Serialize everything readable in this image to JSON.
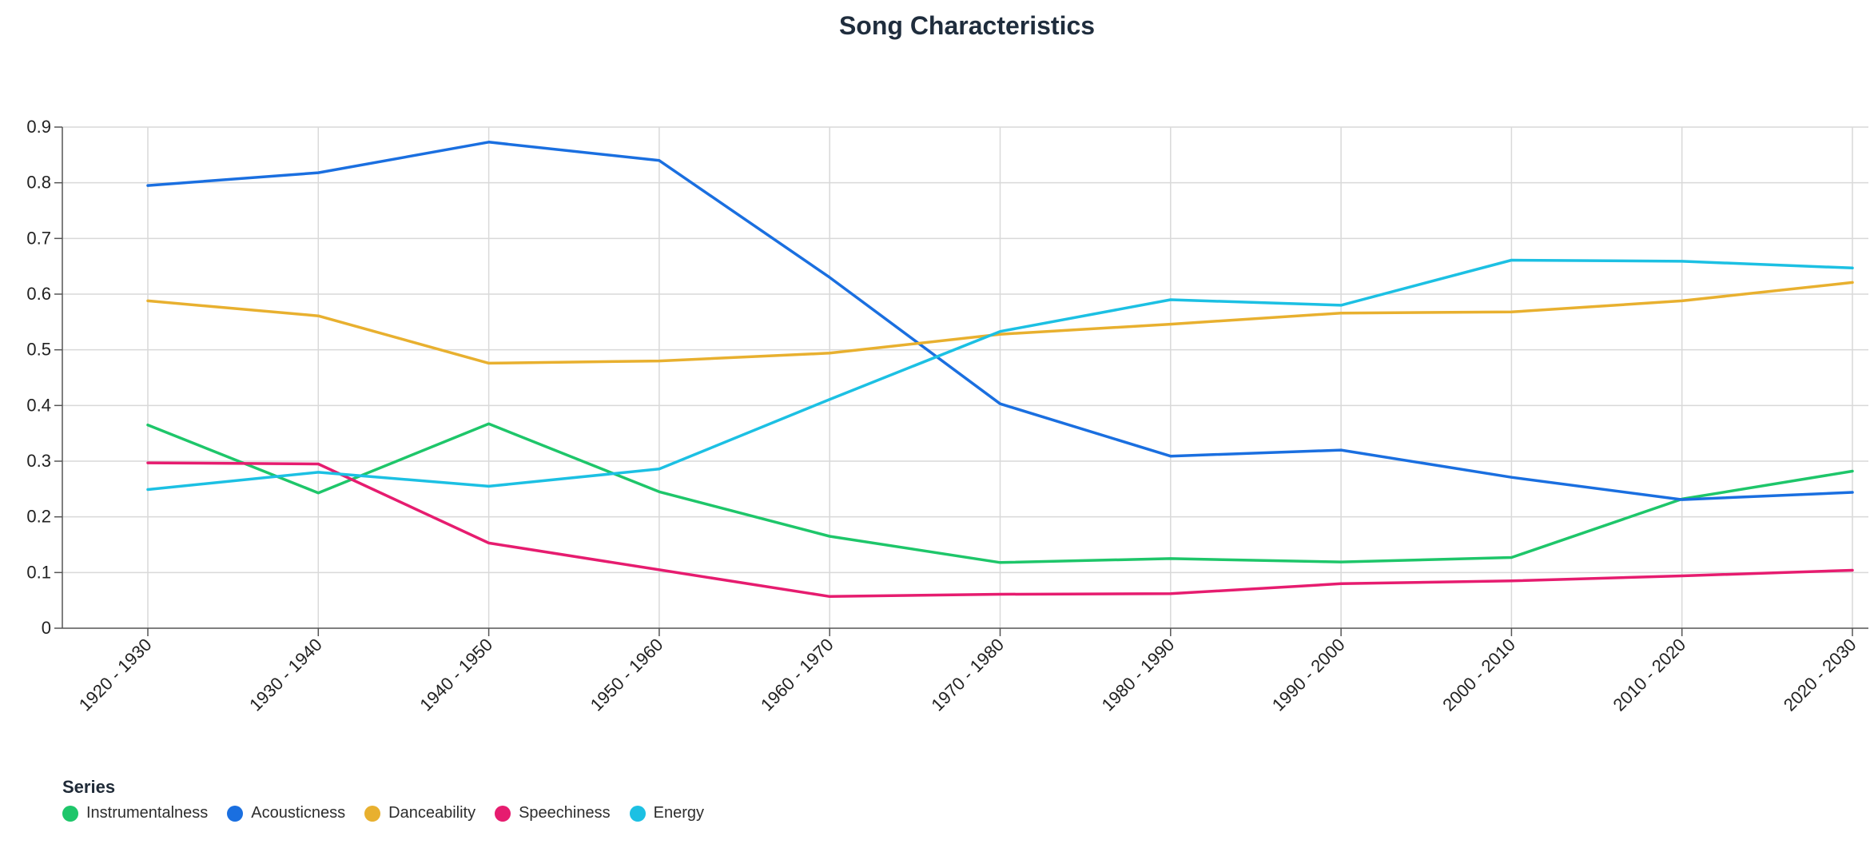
{
  "chart_data": {
    "type": "line",
    "title": "Song Characteristics",
    "xlabel": "",
    "ylabel": "",
    "categories": [
      "1920 - 1930",
      "1930 - 1940",
      "1940 - 1950",
      "1950 - 1960",
      "1960 - 1970",
      "1970 - 1980",
      "1980 - 1990",
      "1990 - 2000",
      "2000 - 2010",
      "2010 - 2020",
      "2020 - 2030"
    ],
    "ylim": [
      0,
      0.9
    ],
    "yticks": [
      "0",
      "0.1",
      "0.2",
      "0.3",
      "0.4",
      "0.5",
      "0.6",
      "0.7",
      "0.8",
      "0.9"
    ],
    "grid": true,
    "legend_position": "bottom-left",
    "legend_title": "Series",
    "series": [
      {
        "name": "Instrumentalness",
        "color": "#1ec66a",
        "values": [
          0.365,
          0.243,
          0.367,
          0.245,
          0.165,
          0.118,
          0.125,
          0.119,
          0.127,
          0.232,
          0.282
        ]
      },
      {
        "name": "Acousticness",
        "color": "#1a6fe0",
        "values": [
          0.795,
          0.818,
          0.873,
          0.84,
          0.63,
          0.403,
          0.309,
          0.32,
          0.271,
          0.231,
          0.244
        ]
      },
      {
        "name": "Danceability",
        "color": "#e8b02f",
        "values": [
          0.588,
          0.561,
          0.476,
          0.48,
          0.494,
          0.528,
          0.546,
          0.566,
          0.568,
          0.588,
          0.621
        ]
      },
      {
        "name": "Speechiness",
        "color": "#e61c6f",
        "values": [
          0.297,
          0.295,
          0.153,
          0.105,
          0.057,
          0.061,
          0.062,
          0.08,
          0.085,
          0.094,
          0.104
        ]
      },
      {
        "name": "Energy",
        "color": "#1cc0e3",
        "values": [
          0.249,
          0.28,
          0.255,
          0.286,
          0.411,
          0.533,
          0.59,
          0.58,
          0.661,
          0.659,
          0.647
        ]
      }
    ]
  }
}
